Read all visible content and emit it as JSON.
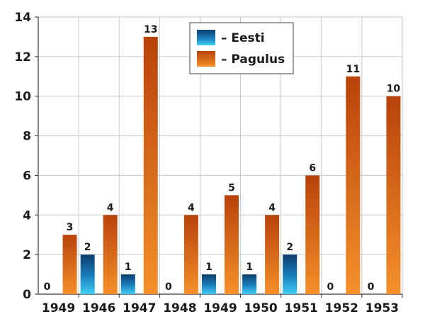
{
  "chart_data": {
    "type": "bar",
    "categories": [
      "1949",
      "1946",
      "1947",
      "1948",
      "1949",
      "1950",
      "1951",
      "1952",
      "1953"
    ],
    "series": [
      {
        "name": "– Eesti",
        "values": [
          0,
          2,
          1,
          0,
          1,
          1,
          2,
          0,
          0
        ],
        "color": "#1a8fc8"
      },
      {
        "name": "– Pagulus",
        "values": [
          3,
          4,
          13,
          4,
          5,
          4,
          6,
          11,
          10
        ],
        "color": "#e8751a"
      }
    ],
    "ylim": [
      0,
      14
    ],
    "yticks": [
      "0",
      "2",
      "4",
      "6",
      "8",
      "10",
      "12",
      "14"
    ],
    "grid": true,
    "legend_position": "top-center"
  }
}
